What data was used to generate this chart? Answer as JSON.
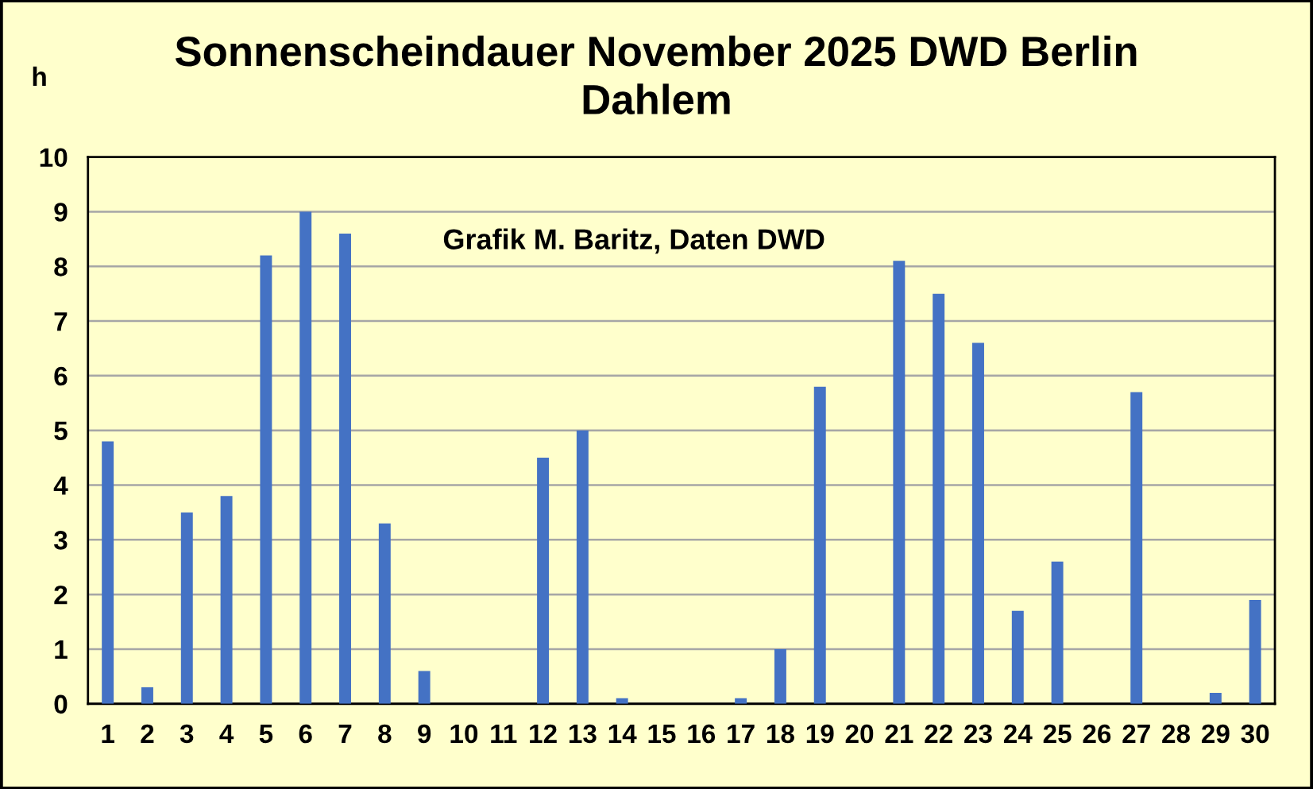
{
  "chart_data": {
    "type": "bar",
    "title": "Sonnenscheindauer November 2025 DWD Berlin\nDahlem",
    "ylabel": "h",
    "categories": [
      "1",
      "2",
      "3",
      "4",
      "5",
      "6",
      "7",
      "8",
      "9",
      "10",
      "11",
      "12",
      "13",
      "14",
      "15",
      "16",
      "17",
      "18",
      "19",
      "20",
      "21",
      "22",
      "23",
      "24",
      "25",
      "26",
      "27",
      "28",
      "29",
      "30"
    ],
    "values": [
      4.8,
      0.3,
      3.5,
      3.8,
      8.2,
      9.0,
      8.6,
      3.3,
      0.6,
      0,
      0,
      4.5,
      5.0,
      0.1,
      0,
      0,
      0.1,
      1.0,
      5.8,
      0,
      8.1,
      7.5,
      6.6,
      1.7,
      2.6,
      0,
      5.7,
      0,
      0.2,
      1.9
    ],
    "color": "#4472c4",
    "ylim": [
      0,
      10
    ],
    "yticks": [
      0,
      1,
      2,
      3,
      4,
      5,
      6,
      7,
      8,
      9,
      10
    ],
    "grid": "y",
    "annotations": [
      "Grafik M. Baritz, Daten DWD"
    ]
  }
}
